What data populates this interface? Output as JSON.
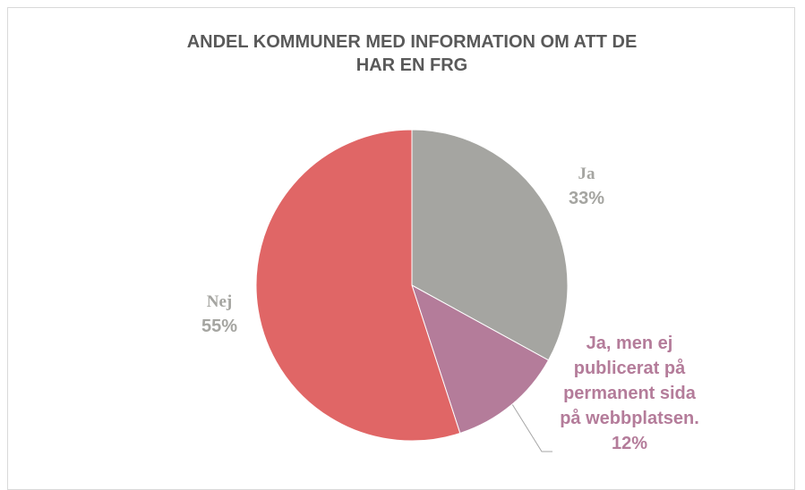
{
  "chart_data": {
    "type": "pie",
    "title": "ANDEL KOMMUNER MED INFORMATION OM ATT DE HAR EN FRG",
    "categories": [
      "Ja",
      "Ja, men ej publicerat på permanent sida på webbplatsen.",
      "Nej"
    ],
    "values": [
      33,
      12,
      55
    ],
    "value_labels": [
      "33%",
      "12%",
      "55%"
    ],
    "colors": [
      "#a5a5a1",
      "#b47c9a",
      "#e06666"
    ]
  }
}
